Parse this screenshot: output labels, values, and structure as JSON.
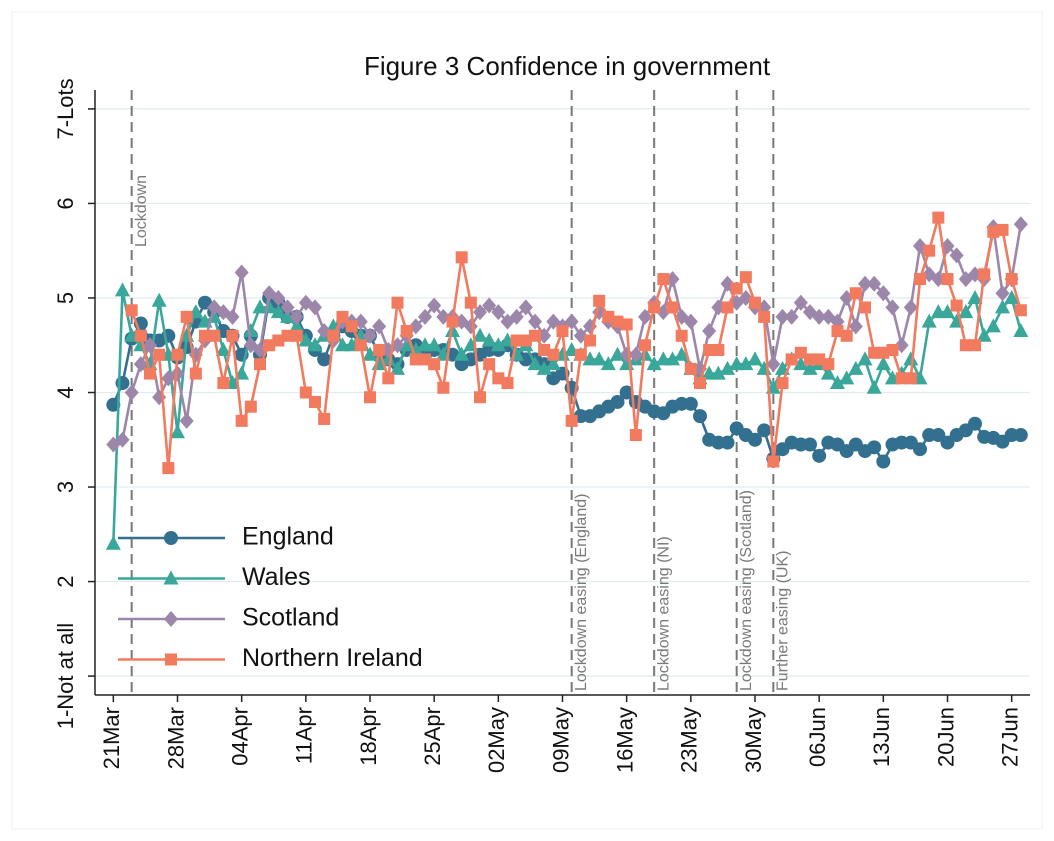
{
  "chart_data": {
    "type": "line",
    "title": "Figure 3 Confidence in government",
    "categories": [
      "21Mar",
      null,
      null,
      null,
      null,
      null,
      null,
      "28Mar",
      null,
      null,
      null,
      null,
      null,
      null,
      "04Apr",
      null,
      null,
      null,
      null,
      null,
      null,
      "11Apr",
      null,
      null,
      null,
      null,
      null,
      null,
      "18Apr",
      null,
      null,
      null,
      null,
      null,
      null,
      "25Apr",
      null,
      null,
      null,
      null,
      null,
      null,
      "02May",
      null,
      null,
      null,
      null,
      null,
      null,
      "09May",
      null,
      null,
      null,
      null,
      null,
      null,
      "16May",
      null,
      null,
      null,
      null,
      null,
      null,
      "23May",
      null,
      null,
      null,
      null,
      null,
      null,
      "30May",
      null,
      null,
      null,
      null,
      null,
      null,
      "06Jun",
      null,
      null,
      null,
      null,
      null,
      null,
      "13Jun",
      null,
      null,
      null,
      null,
      null,
      null,
      "20Jun",
      null,
      null,
      null,
      null,
      null,
      null,
      "27Jun",
      null
    ],
    "series": [
      {
        "name": "England",
        "color": "#33708f",
        "marker": "circle",
        "values": [
          3.87,
          4.1,
          4.57,
          4.73,
          4.55,
          4.55,
          4.6,
          4.37,
          4.48,
          4.75,
          4.95,
          4.85,
          4.65,
          4.6,
          4.4,
          4.6,
          4.4,
          5.0,
          4.95,
          4.8,
          4.8,
          4.6,
          4.45,
          4.35,
          4.6,
          4.7,
          4.65,
          4.6,
          4.6,
          4.4,
          4.35,
          4.3,
          4.45,
          4.5,
          4.4,
          4.45,
          4.45,
          4.4,
          4.3,
          4.35,
          4.4,
          4.45,
          4.45,
          4.5,
          4.4,
          4.35,
          4.35,
          4.3,
          4.15,
          4.2,
          4.05,
          3.75,
          3.75,
          3.8,
          3.85,
          3.9,
          4.0,
          3.9,
          3.85,
          3.8,
          3.78,
          3.85,
          3.88,
          3.88,
          3.75,
          3.5,
          3.47,
          3.47,
          3.62,
          3.55,
          3.5,
          3.6,
          3.3,
          3.4,
          3.47,
          3.45,
          3.45,
          3.33,
          3.47,
          3.45,
          3.38,
          3.45,
          3.38,
          3.42,
          3.27,
          3.45,
          3.47,
          3.47,
          3.4,
          3.55,
          3.55,
          3.47,
          3.55,
          3.6,
          3.67,
          3.53,
          3.52,
          3.48,
          3.55,
          3.55
        ]
      },
      {
        "name": "Wales",
        "color": "#3aa79b",
        "marker": "triangle",
        "values": [
          2.4,
          5.08,
          4.6,
          4.5,
          4.3,
          4.97,
          4.4,
          3.58,
          4.6,
          4.85,
          4.75,
          4.8,
          4.45,
          4.1,
          4.2,
          4.65,
          4.9,
          4.9,
          4.85,
          4.8,
          4.7,
          4.55,
          4.5,
          4.6,
          4.7,
          4.5,
          4.5,
          4.6,
          4.4,
          4.3,
          4.35,
          4.25,
          4.5,
          4.45,
          4.5,
          4.5,
          4.4,
          4.65,
          4.4,
          4.5,
          4.6,
          4.55,
          4.5,
          4.55,
          4.4,
          4.5,
          4.3,
          4.25,
          4.3,
          4.4,
          4.45,
          4.4,
          4.35,
          4.35,
          4.3,
          4.4,
          4.3,
          4.35,
          4.4,
          4.3,
          4.35,
          4.35,
          4.4,
          4.25,
          4.15,
          4.2,
          4.2,
          4.25,
          4.3,
          4.3,
          4.35,
          4.25,
          4.05,
          4.25,
          4.35,
          4.3,
          4.25,
          4.3,
          4.2,
          4.1,
          4.15,
          4.25,
          4.35,
          4.05,
          4.3,
          4.15,
          4.2,
          4.35,
          4.15,
          4.75,
          4.85,
          4.85,
          4.75,
          4.85,
          5.0,
          4.6,
          4.7,
          4.9,
          5.0,
          4.65
        ]
      },
      {
        "name": "Scotland",
        "color": "#9c87ab",
        "marker": "diamond",
        "values": [
          3.45,
          3.5,
          4.0,
          4.3,
          4.5,
          3.95,
          4.15,
          4.2,
          3.7,
          4.4,
          4.55,
          4.9,
          4.85,
          4.8,
          5.27,
          4.5,
          4.45,
          5.05,
          5.0,
          4.9,
          4.8,
          4.95,
          4.9,
          4.65,
          4.55,
          4.75,
          4.75,
          4.75,
          4.6,
          4.7,
          4.45,
          4.5,
          4.6,
          4.7,
          4.8,
          4.92,
          4.8,
          4.8,
          4.75,
          4.7,
          4.85,
          4.92,
          4.85,
          4.75,
          4.8,
          4.9,
          4.75,
          4.6,
          4.75,
          4.7,
          4.75,
          4.6,
          4.7,
          4.85,
          4.75,
          4.7,
          4.4,
          4.4,
          4.8,
          4.95,
          4.85,
          5.2,
          4.8,
          4.75,
          4.25,
          4.65,
          4.9,
          5.15,
          4.95,
          5.0,
          4.9,
          4.9,
          4.3,
          4.8,
          4.8,
          4.95,
          4.85,
          4.8,
          4.8,
          4.75,
          5.0,
          4.7,
          5.15,
          5.15,
          5.05,
          4.9,
          4.5,
          4.9,
          5.55,
          5.25,
          5.2,
          5.55,
          5.45,
          5.2,
          5.25,
          5.2,
          5.75,
          5.05,
          5.2,
          5.78
        ]
      },
      {
        "name": "Northern Ireland",
        "color": "#f27a5f",
        "marker": "square",
        "values": [
          null,
          null,
          4.87,
          4.6,
          4.2,
          4.4,
          3.2,
          4.4,
          4.8,
          4.2,
          4.6,
          4.6,
          4.1,
          4.6,
          3.7,
          3.85,
          4.3,
          4.5,
          4.55,
          4.6,
          4.6,
          4.0,
          3.9,
          3.72,
          4.6,
          4.8,
          4.7,
          4.5,
          3.95,
          4.45,
          4.15,
          4.95,
          4.65,
          4.35,
          4.35,
          4.3,
          4.05,
          4.75,
          5.43,
          4.95,
          3.95,
          4.3,
          4.15,
          4.1,
          4.55,
          4.55,
          4.6,
          4.45,
          4.4,
          4.65,
          3.7,
          4.4,
          4.55,
          4.97,
          4.8,
          4.75,
          4.72,
          3.55,
          4.5,
          4.9,
          5.2,
          4.9,
          4.6,
          4.25,
          4.1,
          4.45,
          4.45,
          4.9,
          5.1,
          5.22,
          4.95,
          4.8,
          3.27,
          4.1,
          4.35,
          4.42,
          4.35,
          4.35,
          4.3,
          4.65,
          4.6,
          5.05,
          4.9,
          4.42,
          4.42,
          4.45,
          4.15,
          4.15,
          5.2,
          5.5,
          5.85,
          5.2,
          4.92,
          4.5,
          4.5,
          5.25,
          5.7,
          5.72,
          5.2,
          4.87
        ]
      }
    ],
    "xlim": [
      -2,
      100
    ],
    "ylim": [
      0.8,
      7.2
    ],
    "yticks": [
      {
        "value": 1,
        "label": "1-Not at all"
      },
      2,
      3,
      4,
      5,
      6,
      {
        "value": 7,
        "label": "7-Lots"
      }
    ],
    "grid": true,
    "legend": "lower-left",
    "events": [
      {
        "label": "Lockdown",
        "x": 2
      },
      {
        "label": "Lockdown easing (England)",
        "x": 50
      },
      {
        "label": "Lockdown easing (NI)",
        "x": 59
      },
      {
        "label": "Lockdown easing (Scotland)",
        "x": 68
      },
      {
        "label": "Further easing (UK)",
        "x": 72
      }
    ]
  }
}
